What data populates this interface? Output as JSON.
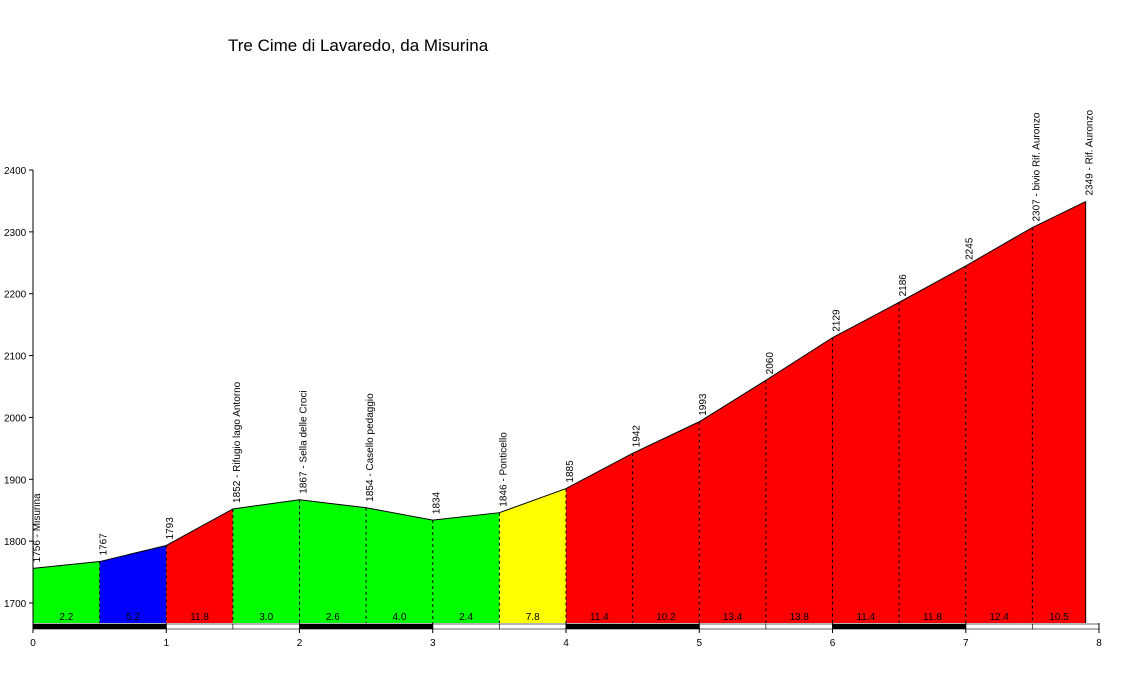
{
  "title": "Tre Cime di Lavaredo, da Misurina",
  "chart_data": {
    "type": "area",
    "xlim": [
      0,
      8
    ],
    "ylim": [
      1700,
      2400
    ],
    "x_ticks": [
      "0",
      "1",
      "2",
      "3",
      "4",
      "5",
      "6",
      "7",
      "8"
    ],
    "y_ticks": [
      "1700",
      "1800",
      "1900",
      "2000",
      "2100",
      "2200",
      "2300",
      "2400"
    ],
    "points": [
      {
        "x": 0,
        "y": 1756,
        "label": "1756 - Misurina"
      },
      {
        "x": 0.5,
        "y": 1767,
        "label": "1767"
      },
      {
        "x": 1.0,
        "y": 1793,
        "label": "1793"
      },
      {
        "x": 1.5,
        "y": 1852,
        "label": "1852 - Rifugio lago Antorno"
      },
      {
        "x": 2.0,
        "y": 1867,
        "label": "1867 - Sella delle Croci"
      },
      {
        "x": 2.5,
        "y": 1854,
        "label": "1854 - Casello pedaggio"
      },
      {
        "x": 3.0,
        "y": 1834,
        "label": "1834"
      },
      {
        "x": 3.5,
        "y": 1846,
        "label": "1846 - Ponticello"
      },
      {
        "x": 4.0,
        "y": 1885,
        "label": "1885"
      },
      {
        "x": 4.5,
        "y": 1942,
        "label": "1942"
      },
      {
        "x": 5.0,
        "y": 1993,
        "label": "1993"
      },
      {
        "x": 5.5,
        "y": 2060,
        "label": "2060"
      },
      {
        "x": 6.0,
        "y": 2129,
        "label": "2129"
      },
      {
        "x": 6.5,
        "y": 2186,
        "label": "2186"
      },
      {
        "x": 7.0,
        "y": 2245,
        "label": "2245"
      },
      {
        "x": 7.5,
        "y": 2307,
        "label": "2307 - bivio Rif. Auronzo"
      },
      {
        "x": 7.9,
        "y": 2349,
        "label": "2349 - Rif. Auronzo"
      }
    ],
    "segments": [
      {
        "gradient": "2.2",
        "color": "#00ff00"
      },
      {
        "gradient": "5.2",
        "color": "#0000ff"
      },
      {
        "gradient": "11.8",
        "color": "#ff0000"
      },
      {
        "gradient": "3.0",
        "color": "#00ff00"
      },
      {
        "gradient": "2.6",
        "color": "#00ff00"
      },
      {
        "gradient": "4.0",
        "color": "#00ff00"
      },
      {
        "gradient": "2.4",
        "color": "#00ff00"
      },
      {
        "gradient": "7.8",
        "color": "#ffff00"
      },
      {
        "gradient": "11.4",
        "color": "#ff0000"
      },
      {
        "gradient": "10.2",
        "color": "#ff0000"
      },
      {
        "gradient": "13.4",
        "color": "#ff0000"
      },
      {
        "gradient": "13.8",
        "color": "#ff0000"
      },
      {
        "gradient": "11.4",
        "color": "#ff0000"
      },
      {
        "gradient": "11.8",
        "color": "#ff0000"
      },
      {
        "gradient": "12.4",
        "color": "#ff0000"
      },
      {
        "gradient": "10.5",
        "color": "#ff0000"
      }
    ]
  }
}
